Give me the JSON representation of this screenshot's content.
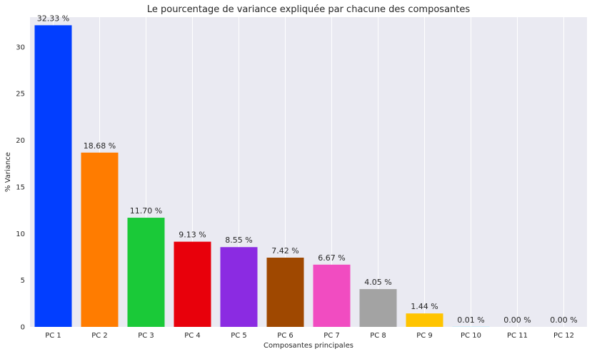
{
  "chart_data": {
    "type": "bar",
    "title": "Le pourcentage de variance expliquée par chacune des composantes",
    "xlabel": "Composantes principales",
    "ylabel": "% Variance",
    "categories": [
      "PC 1",
      "PC 2",
      "PC 3",
      "PC 4",
      "PC 5",
      "PC 6",
      "PC 7",
      "PC 8",
      "PC 9",
      "PC 10",
      "PC 11",
      "PC 12"
    ],
    "values": [
      32.33,
      18.68,
      11.7,
      9.13,
      8.55,
      7.42,
      6.67,
      4.05,
      1.44,
      0.01,
      0.0,
      0.0
    ],
    "value_labels": [
      "32.33 %",
      "18.68 %",
      "11.70 %",
      "9.13 %",
      "8.55 %",
      "7.42 %",
      "6.67 %",
      "4.05 %",
      "1.44 %",
      "0.01 %",
      "0.00 %",
      "0.00 %"
    ],
    "colors": [
      "#023eff",
      "#ff7c00",
      "#1ac938",
      "#e8000b",
      "#8b2be2",
      "#9f4800",
      "#f14cc1",
      "#a3a3a3",
      "#ffc400",
      "#00d7ff",
      "#023eff",
      "#ff7c00"
    ],
    "yticks": [
      0,
      5,
      10,
      15,
      20,
      25,
      30
    ],
    "ylim": [
      0,
      33.2
    ],
    "grid": true,
    "background": "#eaeaf2"
  }
}
